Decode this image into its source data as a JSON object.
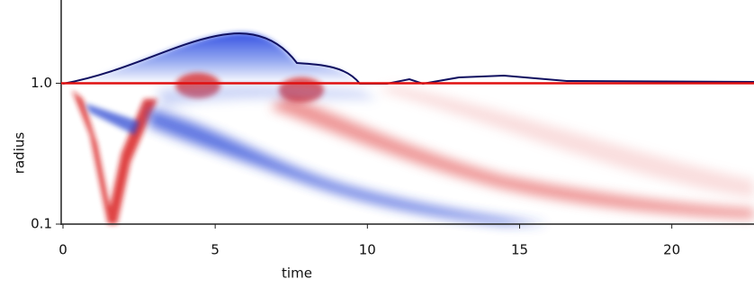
{
  "chart_data": {
    "type": "heatmap",
    "xlabel": "time",
    "ylabel": "radius",
    "xlim": [
      0,
      22.7
    ],
    "xticks": [
      0,
      5,
      10,
      15,
      20
    ],
    "ylim": [
      0.1,
      3.9
    ],
    "log_y": true,
    "yticks": [
      {
        "value": 1,
        "label": "1.0"
      },
      0.1
    ],
    "reference_line": {
      "value": 1,
      "color": "#e01010"
    }
  }
}
